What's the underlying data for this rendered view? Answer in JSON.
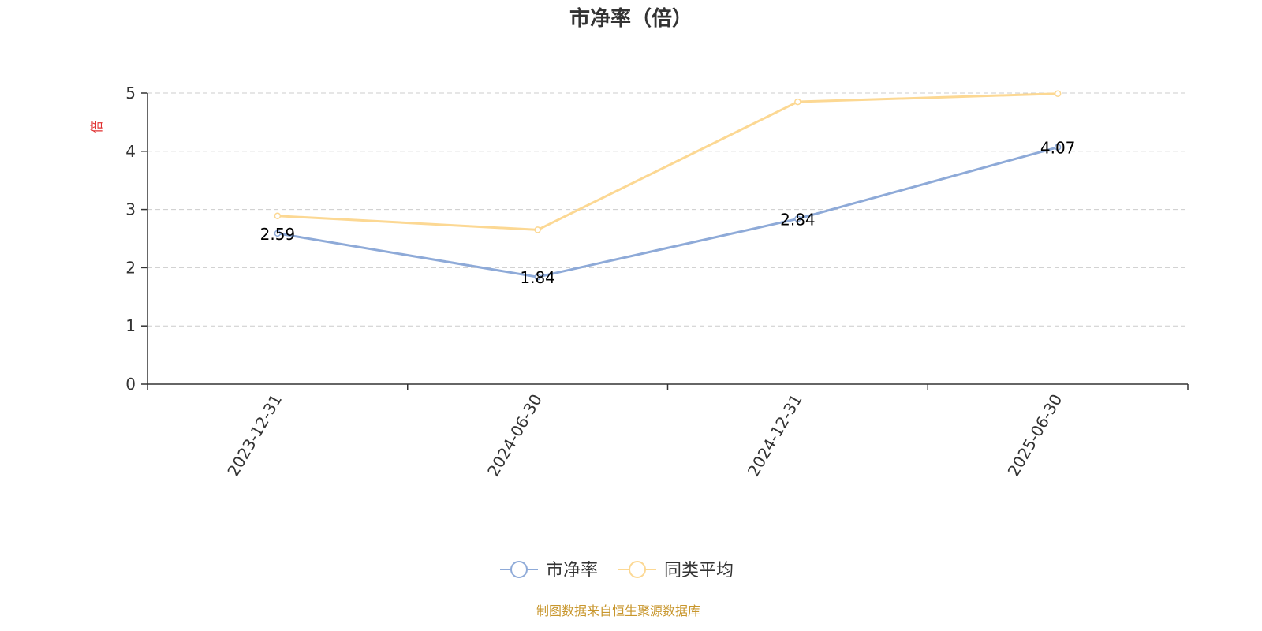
{
  "chart_data": {
    "type": "line",
    "title": "市净率（倍）",
    "y_unit": "倍",
    "categories": [
      "2023-12-31",
      "2024-06-30",
      "2024-12-31",
      "2025-06-30"
    ],
    "ylim": [
      0,
      5
    ],
    "yticks": [
      0,
      1,
      2,
      3,
      4,
      5
    ],
    "grid": true,
    "legend_position": "bottom",
    "series": [
      {
        "name": "市净率",
        "values": [
          2.59,
          1.84,
          2.84,
          4.07
        ],
        "color": "#8eaad8",
        "labels": [
          "2.59",
          "1.84",
          "2.84",
          "4.07"
        ]
      },
      {
        "name": "同类平均",
        "values": [
          2.89,
          2.65,
          4.85,
          4.99
        ],
        "color": "#fcd893"
      }
    ]
  },
  "source": "制图数据来自恒生聚源数据库",
  "colors": {
    "unit_label": "#e03030",
    "source_text": "#c8962c",
    "axis": "#333333",
    "grid": "#cccccc"
  }
}
